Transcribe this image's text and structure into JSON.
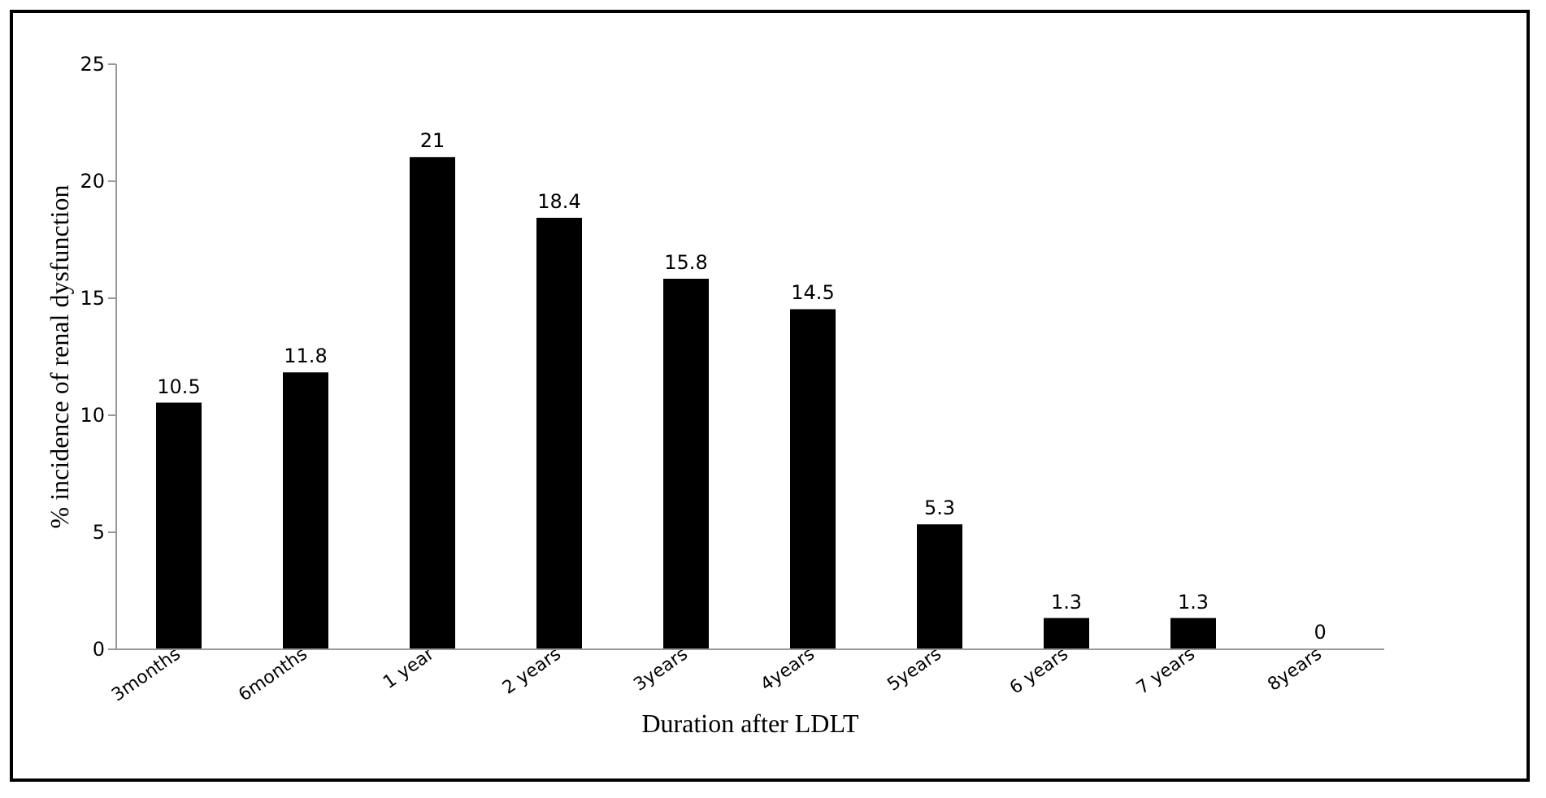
{
  "chart_data": {
    "type": "bar",
    "xlabel": "Duration after LDLT",
    "ylabel": "% incidence of renal dysfunction",
    "categories": [
      "3months",
      "6months",
      "1 year",
      "2 years",
      "3years",
      "4years",
      "5years",
      "6 years",
      "7 years",
      "8years"
    ],
    "values": [
      10.5,
      11.8,
      21,
      18.4,
      15.8,
      14.5,
      5.3,
      1.3,
      1.3,
      0
    ],
    "color": "#000000",
    "ylim": [
      0,
      25
    ],
    "yticks": [
      0,
      5,
      10,
      15,
      20,
      25
    ],
    "grid": false,
    "data_labels": true
  }
}
